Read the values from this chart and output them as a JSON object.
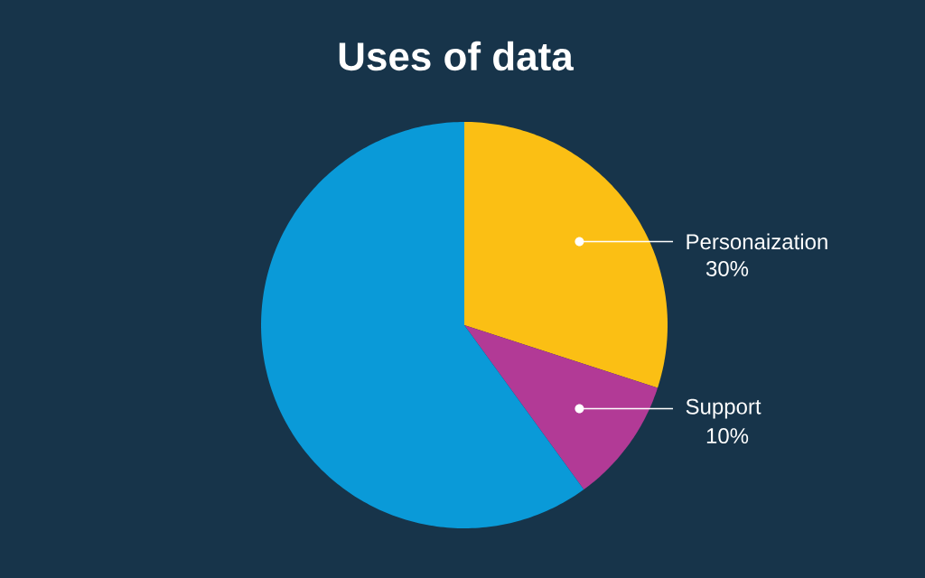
{
  "chart_data": {
    "type": "pie",
    "title": "Uses of data",
    "categories": [
      "Personaization",
      "Support",
      null
    ],
    "values": [
      30,
      10,
      60
    ],
    "colors": [
      "#fbbf14",
      "#b23a96",
      "#0a9ad8"
    ],
    "value_labels": [
      "30%",
      "10%",
      null
    ]
  }
}
